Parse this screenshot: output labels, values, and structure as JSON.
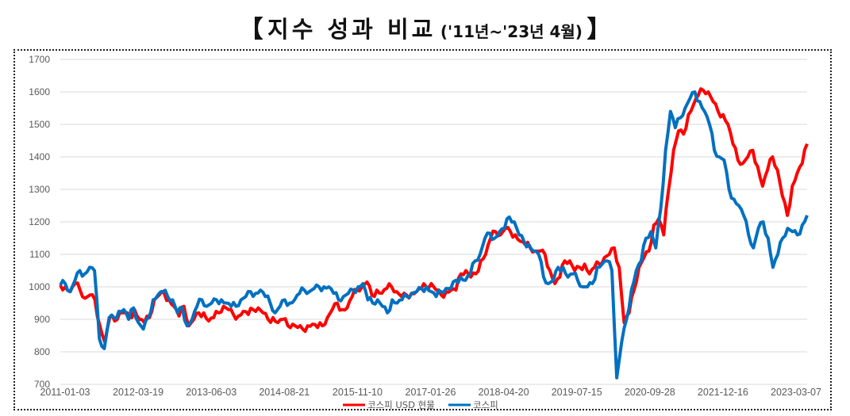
{
  "title": {
    "bracket_open": "【",
    "main": "지수 성과 비교",
    "sub": "('11년~'23년 4월)",
    "bracket_close": "】"
  },
  "colors": {
    "usd": "#FF0000",
    "kospi": "#0070C0",
    "grid": "#D9D9D9",
    "tick_text": "#595959"
  },
  "chart_data": {
    "type": "line",
    "title": "지수 성과 비교 ('11년~'23년 4월)",
    "xlabel": "",
    "ylabel": "",
    "ylim": [
      700,
      1700
    ],
    "yticks": [
      700,
      800,
      900,
      1000,
      1100,
      1200,
      1300,
      1400,
      1500,
      1600,
      1700
    ],
    "xtick_labels": [
      "2011-01-03",
      "2012-03-19",
      "2013-06-03",
      "2014-08-21",
      "2015-11-10",
      "2017-01-26",
      "2018-04-20",
      "2019-07-15",
      "2020-09-28",
      "2021-12-16",
      "2023-03-07"
    ],
    "grid": true,
    "legend_position": "bottom",
    "x_start": "2011-01",
    "x_end": "2023-04",
    "x_interval": "monthly",
    "series": [
      {
        "name": "코스피 USD 현물",
        "color": "#FF0000",
        "values": [
          1005,
          1000,
          985,
          1010,
          990,
          965,
          975,
          960,
          880,
          830,
          905,
          895,
          920,
          920,
          905,
          930,
          900,
          890,
          905,
          960,
          975,
          980,
          960,
          940,
          910,
          940,
          880,
          900,
          920,
          920,
          895,
          905,
          920,
          940,
          930,
          915,
          910,
          925,
          915,
          930,
          935,
          920,
          900,
          905,
          890,
          900,
          880,
          885,
          875,
          870,
          880,
          885,
          875,
          880,
          905,
          930,
          950,
          930,
          935,
          970,
          990,
          1000,
          1015,
          975,
          990,
          980,
          995,
          1000,
          985,
          970,
          975,
          980,
          985,
          995,
          1000,
          1010,
          990,
          975,
          985,
          990,
          990,
          1040,
          1050,
          1030,
          1040,
          1080,
          1100,
          1150,
          1170,
          1160,
          1180,
          1170,
          1160,
          1140,
          1130,
          1120,
          1110,
          1110,
          1100,
          1050,
          1010,
          1030,
          1080,
          1080,
          1050,
          1060,
          1070,
          1040,
          1060,
          1070,
          1090,
          1100,
          1120,
          1060,
          890,
          920,
          990,
          1060,
          1090,
          1110,
          1190,
          1210,
          1160,
          1300,
          1420,
          1480,
          1470,
          1530,
          1560,
          1590,
          1605,
          1600,
          1570,
          1540,
          1530,
          1500,
          1440,
          1390,
          1380,
          1400,
          1420,
          1370,
          1310,
          1360,
          1400,
          1360,
          1280,
          1220,
          1310,
          1350,
          1380,
          1440
        ]
      },
      {
        "name": "코스피",
        "color": "#0070C0",
        "values": [
          1005,
          1010,
          985,
          1020,
          1050,
          1040,
          1060,
          1050,
          840,
          810,
          905,
          905,
          925,
          930,
          900,
          935,
          890,
          870,
          905,
          960,
          975,
          985,
          970,
          960,
          920,
          935,
          880,
          900,
          940,
          960,
          940,
          950,
          960,
          960,
          950,
          940,
          940,
          960,
          970,
          985,
          980,
          990,
          970,
          950,
          920,
          940,
          960,
          950,
          960,
          980,
          990,
          985,
          995,
          1000,
          1000,
          1000,
          980,
          960,
          970,
          980,
          990,
          1000,
          1010,
          960,
          950,
          960,
          940,
          920,
          960,
          950,
          960,
          970,
          980,
          985,
          995,
          1000,
          985,
          970,
          985,
          995,
          995,
          1020,
          1030,
          1020,
          1040,
          1080,
          1100,
          1150,
          1165,
          1150,
          1170,
          1180,
          1215,
          1200,
          1160,
          1140,
          1130,
          1110,
          1100,
          1030,
          1010,
          1020,
          1060,
          1060,
          1030,
          1040,
          1020,
          1000,
          1000,
          1010,
          1060,
          1070,
          1080,
          1050,
          720,
          830,
          900,
          990,
          1050,
          1080,
          1150,
          1170,
          1120,
          1240,
          1420,
          1540,
          1490,
          1520,
          1550,
          1580,
          1600,
          1570,
          1540,
          1500,
          1420,
          1400,
          1390,
          1300,
          1270,
          1250,
          1220,
          1160,
          1120,
          1180,
          1200,
          1150,
          1060,
          1100,
          1150,
          1180,
          1170,
          1160,
          1190,
          1220
        ]
      }
    ]
  },
  "legend": {
    "items": [
      {
        "label": "코스피 USD 현물",
        "color": "#FF0000"
      },
      {
        "label": "코스피",
        "color": "#0070C0"
      }
    ]
  }
}
